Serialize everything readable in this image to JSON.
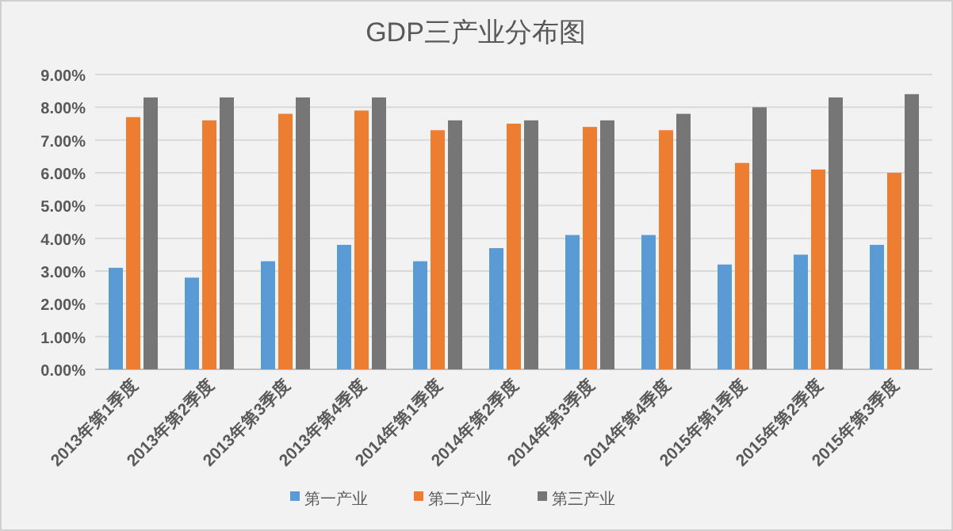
{
  "chart_data": {
    "type": "bar",
    "title": "GDP三产业分布图",
    "categories": [
      "2013年第1季度",
      "2013年第2季度",
      "2013年第3季度",
      "2013年第4季度",
      "2014年第1季度",
      "2014年第2季度",
      "2014年第3季度",
      "2014年第4季度",
      "2015年第1季度",
      "2015年第2季度",
      "2015年第3季度"
    ],
    "series": [
      {
        "name": "第一产业",
        "color": "#5b9bd5",
        "values": [
          3.1,
          2.8,
          3.3,
          3.8,
          3.3,
          3.7,
          4.1,
          4.1,
          3.2,
          3.5,
          3.8
        ]
      },
      {
        "name": "第二产业",
        "color": "#ed7d31",
        "values": [
          7.7,
          7.6,
          7.8,
          7.9,
          7.3,
          7.5,
          7.4,
          7.3,
          6.3,
          6.1,
          6.0
        ]
      },
      {
        "name": "第三产业",
        "color": "#767676",
        "values": [
          8.3,
          8.3,
          8.3,
          8.3,
          7.6,
          7.6,
          7.6,
          7.8,
          8.0,
          8.3,
          8.4
        ]
      }
    ],
    "ylim": [
      0,
      9
    ],
    "yticks": [
      {
        "value": 0,
        "label": "0.00%"
      },
      {
        "value": 1,
        "label": "1.00%"
      },
      {
        "value": 2,
        "label": "2.00%"
      },
      {
        "value": 3,
        "label": "3.00%"
      },
      {
        "value": 4,
        "label": "4.00%"
      },
      {
        "value": 5,
        "label": "5.00%"
      },
      {
        "value": 6,
        "label": "6.00%"
      },
      {
        "value": 7,
        "label": "7.00%"
      },
      {
        "value": 8,
        "label": "8.00%"
      },
      {
        "value": 9,
        "label": "9.00%"
      }
    ],
    "grid": "y",
    "legend": "bottom"
  }
}
